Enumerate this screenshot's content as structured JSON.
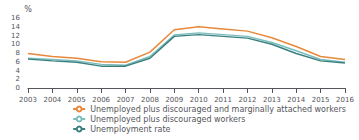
{
  "chart_data": {
    "type": "line",
    "ylabel": "%",
    "x": [
      2003,
      2004,
      2005,
      2006,
      2007,
      2008,
      2009,
      2010,
      2011,
      2012,
      2013,
      2014,
      2015,
      2016
    ],
    "xlim": [
      2003,
      2016
    ],
    "xticks": [
      2003,
      2004,
      2005,
      2006,
      2007,
      2008,
      2009,
      2010,
      2011,
      2012,
      2013,
      2014,
      2015,
      2016
    ],
    "ylim": [
      0,
      16
    ],
    "yticks": [
      0,
      2,
      4,
      6,
      8,
      10,
      12,
      14,
      16
    ],
    "grid": false,
    "legend": "lower right",
    "series": [
      {
        "name": "Unemployed plus discouraged and marginally attached workers",
        "color": "#E8883A",
        "values": [
          7.9,
          7.2,
          6.8,
          6.0,
          5.9,
          8.2,
          13.3,
          14.0,
          13.5,
          13.0,
          11.5,
          9.5,
          7.2,
          6.5
        ]
      },
      {
        "name": "Unemployed plus discouraged workers",
        "color": "#7BBCBC",
        "values": [
          6.8,
          6.5,
          6.2,
          5.4,
          5.2,
          7.2,
          12.1,
          12.6,
          12.2,
          11.8,
          10.4,
          8.5,
          6.5,
          5.9
        ]
      },
      {
        "name": "Unemployment rate",
        "color": "#3A8080",
        "values": [
          6.6,
          6.2,
          5.9,
          5.0,
          5.0,
          6.8,
          11.8,
          12.2,
          11.8,
          11.4,
          10.0,
          7.9,
          6.2,
          5.7
        ]
      }
    ]
  }
}
